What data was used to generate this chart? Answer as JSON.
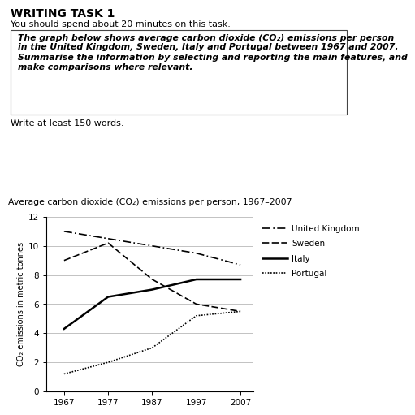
{
  "title": "Average carbon dioxide (CO₂) emissions per person, 1967–2007",
  "ylabel": "CO₂ emissions in metric tonnes",
  "years": [
    1967,
    1977,
    1987,
    1997,
    2007
  ],
  "uk": [
    11.0,
    10.5,
    10.0,
    9.5,
    8.7
  ],
  "sweden": [
    9.0,
    10.2,
    7.7,
    6.0,
    5.5
  ],
  "italy": [
    4.3,
    6.5,
    7.0,
    7.7,
    7.7
  ],
  "portugal": [
    1.2,
    2.0,
    3.0,
    5.2,
    5.5
  ],
  "ylim": [
    0,
    12
  ],
  "yticks": [
    0,
    2,
    4,
    6,
    8,
    10,
    12
  ],
  "xticks": [
    1967,
    1977,
    1987,
    1997,
    2007
  ],
  "legend_labels": [
    "United Kingdom",
    "Sweden",
    "Italy",
    "Portugal"
  ],
  "header_title": "WRITING TASK 1",
  "header_subtitle": "You should spend about 20 minutes on this task.",
  "box_line1": "The graph below shows average carbon dioxide (CO₂) emissions per person",
  "box_line2": "in the United Kingdom, Sweden, Italy and Portugal between 1967 and 2007.",
  "box_line3": "Summarise the information by selecting and reporting the main features, and",
  "box_line4": "make comparisons where relevant.",
  "footer_text": "Write at least 150 words.",
  "bg_color": "#ffffff"
}
